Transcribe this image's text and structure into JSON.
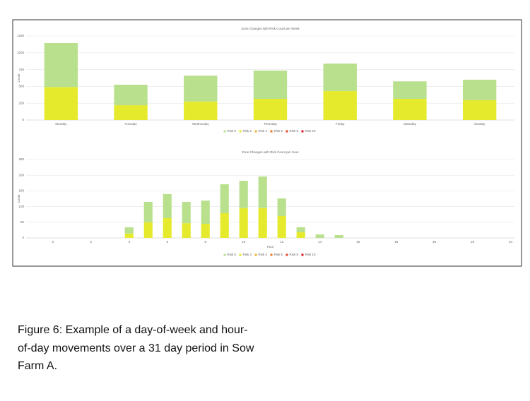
{
  "chart_data": [
    {
      "type": "bar",
      "title": "Zone Changes with Risk Count per Week",
      "ylabel": "Count",
      "categories": [
        "Monday",
        "Tuesday",
        "Wednesday",
        "Thursday",
        "Friday",
        "Saturday",
        "Sunday"
      ],
      "series": [
        {
          "name": "Risk 2",
          "color": "#e6ea2c",
          "values": [
            490,
            220,
            275,
            315,
            430,
            315,
            295
          ]
        },
        {
          "name": "Risk 0",
          "color": "#b9e08c",
          "values": [
            655,
            305,
            385,
            420,
            410,
            260,
            305
          ]
        },
        {
          "name": "Risk 4",
          "color": "#f2b233",
          "values": [
            0,
            0,
            0,
            0,
            0,
            0,
            0
          ]
        },
        {
          "name": "Risk 6",
          "color": "#f07a2a",
          "values": [
            0,
            0,
            0,
            0,
            0,
            0,
            0
          ]
        },
        {
          "name": "Risk 8",
          "color": "#ea4a2a",
          "values": [
            0,
            0,
            0,
            0,
            0,
            0,
            0
          ]
        },
        {
          "name": "Risk 10",
          "color": "#d9182a",
          "values": [
            0,
            0,
            0,
            0,
            0,
            0,
            0
          ]
        }
      ],
      "legend_order": [
        1,
        0,
        2,
        3,
        4,
        5
      ],
      "ylim": [
        0,
        1250
      ],
      "yticks": [
        0,
        250,
        500,
        750,
        1000,
        1250
      ],
      "grid": true
    },
    {
      "type": "bar",
      "title": "Zone Changes with Risk Count per Hour",
      "ylabel": "Count",
      "xlabel": "Hour",
      "x": [
        0,
        1,
        2,
        3,
        4,
        5,
        6,
        7,
        8,
        9,
        10,
        11,
        12,
        13,
        14,
        15,
        16,
        17,
        18,
        19,
        20,
        21,
        22,
        23
      ],
      "series": [
        {
          "name": "Risk 2",
          "color": "#e6ea2c",
          "values": [
            0,
            0,
            0,
            0,
            14,
            50,
            63,
            47,
            45,
            79,
            95,
            95,
            70,
            18,
            0,
            0,
            0,
            0,
            0,
            0,
            0,
            0,
            0,
            0
          ]
        },
        {
          "name": "Risk 0",
          "color": "#b9e08c",
          "values": [
            0,
            0,
            0,
            0,
            20,
            65,
            77,
            68,
            74,
            92,
            87,
            101,
            56,
            16,
            11,
            9,
            0,
            0,
            0,
            0,
            0,
            0,
            0,
            0
          ]
        },
        {
          "name": "Risk 4",
          "color": "#f2b233",
          "values": [
            0,
            0,
            0,
            0,
            0,
            0,
            0,
            0,
            0,
            0,
            0,
            0,
            0,
            0,
            0,
            0,
            0,
            0,
            0,
            0,
            0,
            0,
            0,
            0
          ]
        },
        {
          "name": "Risk 6",
          "color": "#f07a2a",
          "values": [
            0,
            0,
            0,
            0,
            0,
            0,
            0,
            0,
            0,
            0,
            0,
            0,
            0,
            0,
            0,
            0,
            0,
            0,
            0,
            0,
            0,
            0,
            0,
            0
          ]
        },
        {
          "name": "Risk 8",
          "color": "#ea4a2a",
          "values": [
            0,
            0,
            0,
            0,
            0,
            0,
            0,
            0,
            0,
            0,
            0,
            0,
            0,
            0,
            0,
            0,
            0,
            0,
            0,
            0,
            0,
            0,
            0,
            0
          ]
        },
        {
          "name": "Risk 10",
          "color": "#d9182a",
          "values": [
            0,
            0,
            0,
            0,
            0,
            0,
            0,
            0,
            0,
            0,
            0,
            0,
            0,
            0,
            0,
            0,
            0,
            0,
            0,
            0,
            0,
            0,
            0,
            0
          ]
        }
      ],
      "legend_order": [
        1,
        0,
        2,
        3,
        4,
        5
      ],
      "xlim": [
        -1.4,
        24.2
      ],
      "xticks": [
        0,
        2,
        4,
        6,
        8,
        10,
        12,
        14,
        16,
        18,
        20,
        22,
        24
      ],
      "ylim": [
        0,
        250
      ],
      "yticks": [
        0,
        50,
        100,
        150,
        200,
        250
      ],
      "grid": true
    }
  ],
  "caption": [
    "Figure 6: Example of a day-of-week and hour-",
    "of-day movements over a 31 day period in Sow",
    "Farm A."
  ]
}
